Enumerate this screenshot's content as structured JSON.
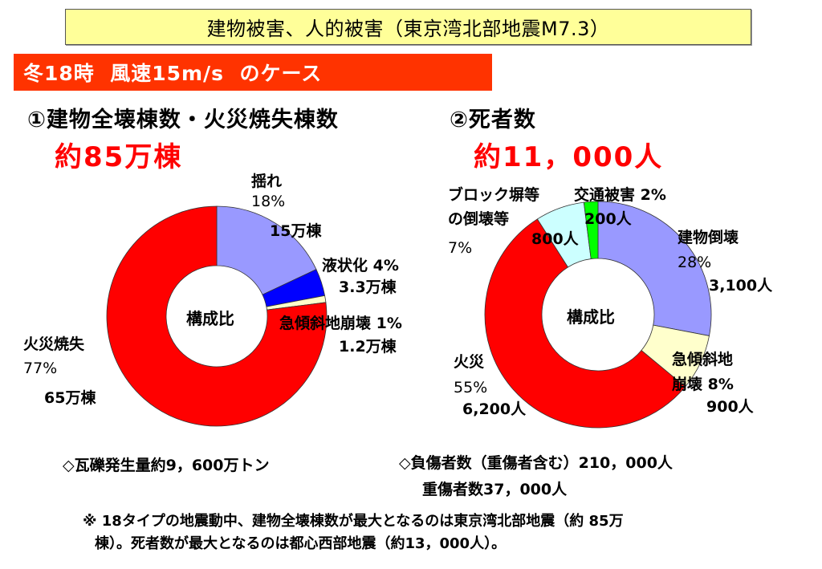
{
  "header": {
    "title": "建物被害、人的被害（東京湾北部地震M7.3）",
    "case_label": "冬18時  風速15m/s  のケース"
  },
  "left": {
    "heading": "①建物全壊棟数・火災焼失棟数",
    "total": "約85万棟",
    "center_label": "構成比",
    "labels": {
      "shake": {
        "name": "揺れ",
        "pct": "18%",
        "value": "15万棟"
      },
      "liquefaction": {
        "name": "液状化 4%",
        "value": "3.3万棟"
      },
      "slope": {
        "name": "急傾斜地崩壊 1%",
        "value": "1.2万棟"
      },
      "fire": {
        "name": "火災焼失",
        "pct": "77%",
        "value": "65万棟"
      }
    }
  },
  "right": {
    "heading": "②死者数",
    "total": "約11，000人",
    "center_label": "構成比",
    "labels": {
      "traffic": {
        "name": "交通被害  2%",
        "value": "200人"
      },
      "collapse": {
        "name": "建物倒壊",
        "pct": "28%",
        "value": "3,100人"
      },
      "slope": {
        "name1": "急傾斜地",
        "name2": "崩壊  8%",
        "value": "900人"
      },
      "fire": {
        "name": "火災",
        "pct": "55%",
        "value": "6,200人"
      },
      "block": {
        "name1": "ブロック塀等",
        "name2": "の倒壊等",
        "pct": "7%",
        "value": "800人"
      }
    }
  },
  "notes": {
    "debris": "◇瓦礫発生量約9，600万トン",
    "injured": "◇負傷者数（重傷者含む）210，000人",
    "serious": "重傷者数37，000人",
    "footnote_line1": "※  18タイプの地震動中、建物全壊棟数が最大となるのは東京湾北部地震（約 85万",
    "footnote_line2": "棟）。死者数が最大となるのは都心西部地震（約13，000人）。"
  },
  "chart_data": [
    {
      "type": "pie",
      "donut": true,
      "title": "①建物全壊棟数・火災焼失棟数 約85万棟",
      "center_label": "構成比",
      "categories": [
        "揺れ",
        "液状化",
        "急傾斜地崩壊",
        "火災焼失"
      ],
      "values": [
        18,
        4,
        1,
        77
      ],
      "counts": [
        "15万棟",
        "3.3万棟",
        "1.2万棟",
        "65万棟"
      ],
      "unit": "%",
      "colors": [
        "#9999ff",
        "#0000ff",
        "#ffffcc",
        "#ff0000"
      ],
      "start_angle": "12 o'clock, clockwise"
    },
    {
      "type": "pie",
      "donut": true,
      "title": "②死者数 約11,000人",
      "center_label": "構成比",
      "categories": [
        "建物倒壊",
        "急傾斜地崩壊",
        "火災",
        "ブロック塀等の倒壊等",
        "交通被害"
      ],
      "values": [
        28,
        8,
        55,
        7,
        2
      ],
      "counts": [
        "3,100人",
        "900人",
        "6,200人",
        "800人",
        "200人"
      ],
      "unit": "%",
      "colors": [
        "#9999ff",
        "#ffffcc",
        "#ff0000",
        "#ccffff",
        "#00ff00"
      ],
      "start_angle": "12 o'clock, clockwise"
    }
  ]
}
